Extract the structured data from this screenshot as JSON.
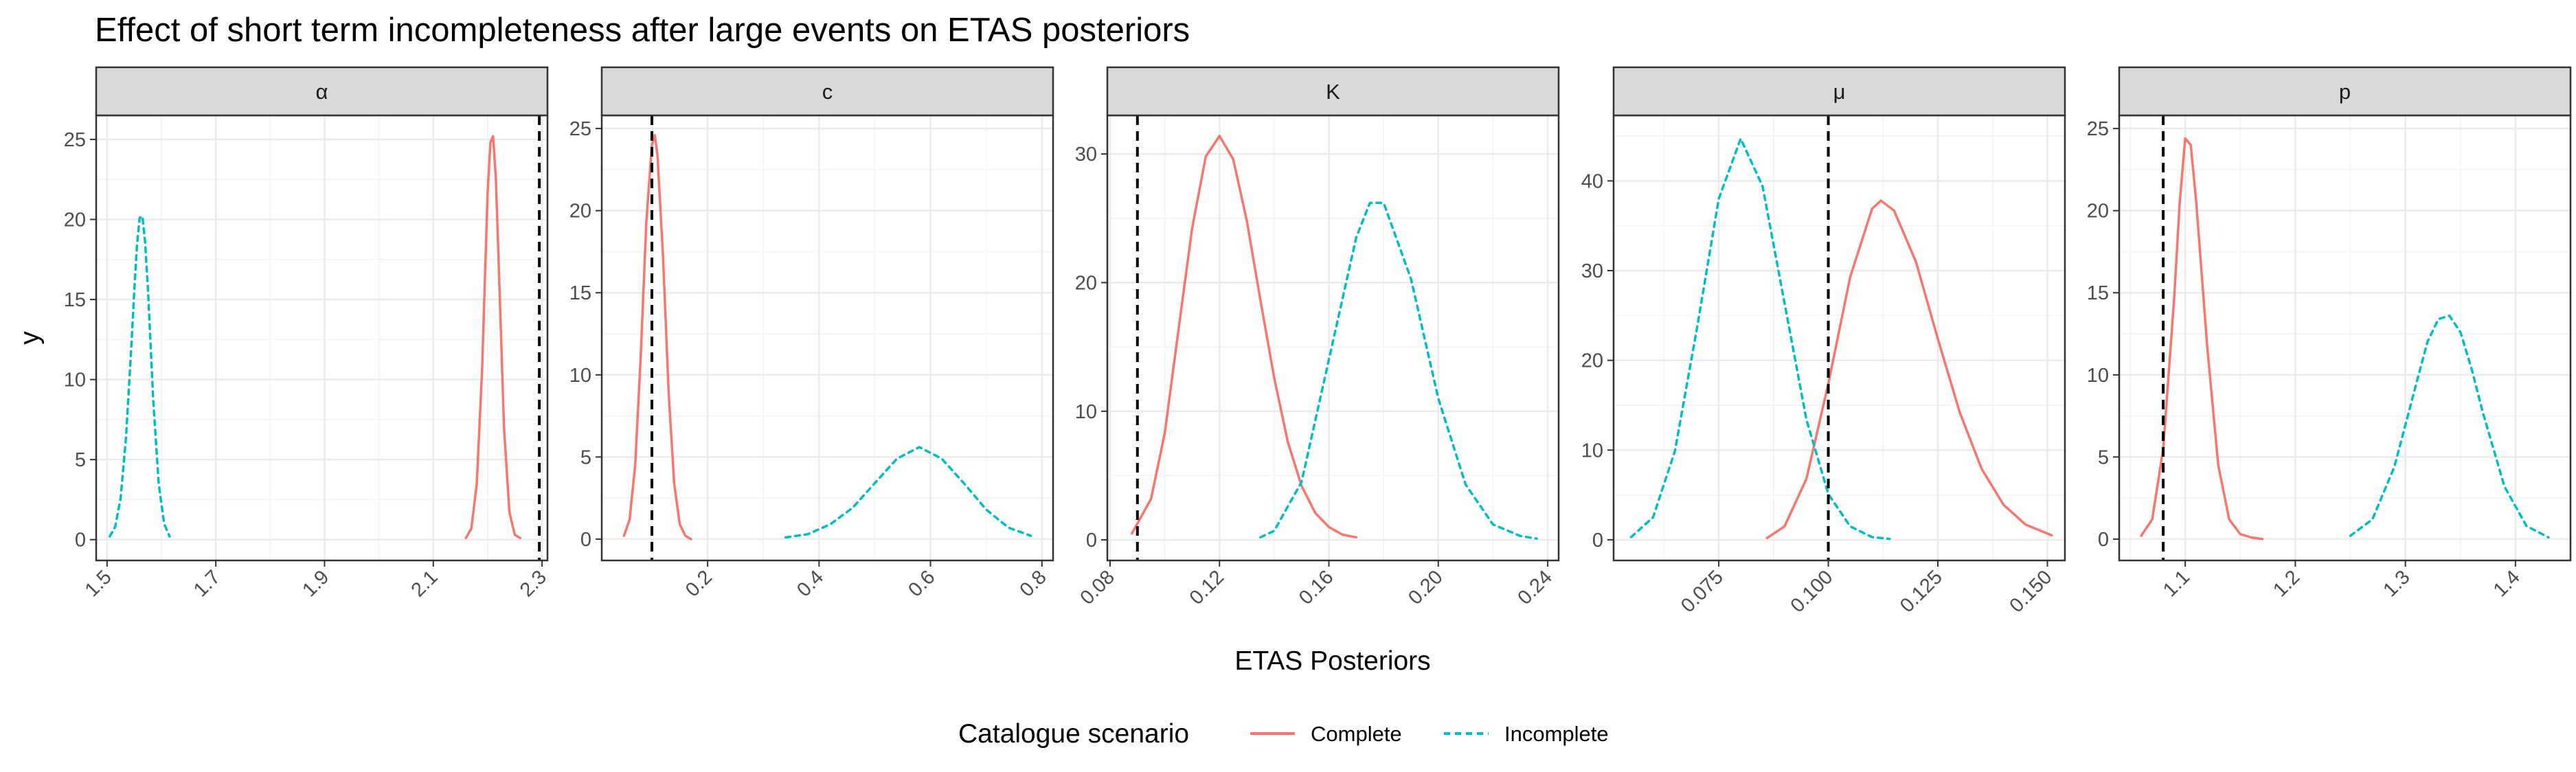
{
  "colors": {
    "complete": "#F8766D",
    "incomplete": "#00BFC4",
    "reference": "#000000",
    "strip_fill": "#D9D9D9",
    "grid_major": "#EBEBEB",
    "grid_minor": "#F5F5F5",
    "panel_border": "#333333"
  },
  "chart_data": {
    "type": "line",
    "title": "Effect of short term incompleteness after large events on ETAS posteriors",
    "xlabel": "ETAS Posteriors",
    "ylabel": "y",
    "legend": {
      "title": "Catalogue scenario",
      "position": "bottom",
      "entries": [
        {
          "label": "Complete",
          "color": "#F8766D",
          "linetype": "solid"
        },
        {
          "label": "Incomplete",
          "color": "#00BFC4",
          "linetype": "dotted"
        }
      ]
    },
    "grid": true,
    "panels": [
      {
        "strip": "α",
        "xlim": [
          1.48,
          2.31
        ],
        "ylim": [
          -1.3,
          26.5
        ],
        "xticks": [
          1.5,
          1.7,
          1.9,
          2.1,
          2.3
        ],
        "xtick_labels": [
          "1.5",
          "1.7",
          "1.9",
          "2.1",
          "2.3"
        ],
        "yticks": [
          0,
          5,
          10,
          15,
          20,
          25
        ],
        "ytick_labels": [
          "0",
          "5",
          "10",
          "15",
          "20",
          "25"
        ],
        "reference_x": 2.295,
        "series": [
          {
            "name": "Complete",
            "x": [
              2.16,
              2.17,
              2.18,
              2.19,
              2.195,
              2.2,
              2.205,
              2.21,
              2.215,
              2.22,
              2.23,
              2.24,
              2.25,
              2.26
            ],
            "y": [
              0.1,
              0.7,
              3.5,
              10.8,
              16.4,
              21.7,
              24.8,
              25.2,
              22.6,
              17.5,
              7.0,
              1.7,
              0.3,
              0.1
            ]
          },
          {
            "name": "Incomplete",
            "x": [
              1.505,
              1.515,
              1.525,
              1.535,
              1.545,
              1.55,
              1.555,
              1.56,
              1.565,
              1.57,
              1.575,
              1.585,
              1.595,
              1.605,
              1.615
            ],
            "y": [
              0.2,
              0.8,
              2.6,
              6.4,
              12.3,
              15.5,
              18.4,
              20.1,
              20.2,
              18.6,
              15.8,
              8.7,
              3.5,
              1.0,
              0.2
            ]
          }
        ]
      },
      {
        "strip": "c",
        "xlim": [
          0.01,
          0.82
        ],
        "ylim": [
          -1.3,
          25.8
        ],
        "xticks": [
          0.2,
          0.4,
          0.6,
          0.8
        ],
        "xtick_labels": [
          "0.2",
          "0.4",
          "0.6",
          "0.8"
        ],
        "yticks": [
          0,
          5,
          10,
          15,
          20,
          25
        ],
        "ytick_labels": [
          "0",
          "5",
          "10",
          "15",
          "20",
          "25"
        ],
        "reference_x": 0.1,
        "series": [
          {
            "name": "Complete",
            "x": [
              0.05,
              0.06,
              0.07,
              0.08,
              0.09,
              0.1,
              0.105,
              0.11,
              0.12,
              0.13,
              0.14,
              0.15,
              0.16,
              0.17
            ],
            "y": [
              0.2,
              1.2,
              4.5,
              11.2,
              19.3,
              24.0,
              24.6,
              23.4,
              17.2,
              9.0,
              3.4,
              0.9,
              0.2,
              0.0
            ]
          },
          {
            "name": "Incomplete",
            "x": [
              0.34,
              0.38,
              0.42,
              0.46,
              0.5,
              0.54,
              0.58,
              0.62,
              0.66,
              0.7,
              0.74,
              0.78
            ],
            "y": [
              0.1,
              0.3,
              0.9,
              1.9,
              3.4,
              4.9,
              5.6,
              4.9,
              3.4,
              1.8,
              0.7,
              0.2
            ]
          }
        ]
      },
      {
        "strip": "K",
        "xlim": [
          0.079,
          0.244
        ],
        "ylim": [
          -1.6,
          33.0
        ],
        "xticks": [
          0.08,
          0.12,
          0.16,
          0.2,
          0.24
        ],
        "xtick_labels": [
          "0.08",
          "0.12",
          "0.16",
          "0.20",
          "0.24"
        ],
        "yticks": [
          0,
          10,
          20,
          30
        ],
        "ytick_labels": [
          "0",
          "10",
          "20",
          "30"
        ],
        "reference_x": 0.09,
        "series": [
          {
            "name": "Complete",
            "x": [
              0.088,
              0.095,
              0.1,
              0.105,
              0.11,
              0.115,
              0.12,
              0.125,
              0.13,
              0.135,
              0.14,
              0.145,
              0.15,
              0.155,
              0.16,
              0.165,
              0.17
            ],
            "y": [
              0.5,
              3.2,
              8.3,
              16.3,
              24.2,
              29.8,
              31.4,
              29.6,
              24.8,
              18.6,
              12.6,
              7.6,
              4.2,
              2.1,
              1.0,
              0.4,
              0.2
            ]
          },
          {
            "name": "Incomplete",
            "x": [
              0.135,
              0.14,
              0.15,
              0.16,
              0.17,
              0.175,
              0.18,
              0.19,
              0.2,
              0.21,
              0.22,
              0.23,
              0.236
            ],
            "y": [
              0.2,
              0.7,
              4.5,
              14.0,
              23.5,
              26.2,
              26.2,
              20.3,
              11.0,
              4.3,
              1.2,
              0.3,
              0.1
            ]
          }
        ]
      },
      {
        "strip": "μ",
        "xlim": [
          0.051,
          0.154
        ],
        "ylim": [
          -2.3,
          47.3
        ],
        "xticks": [
          0.075,
          0.1,
          0.125,
          0.15
        ],
        "xtick_labels": [
          "0.075",
          "0.100",
          "0.125",
          "0.150"
        ],
        "yticks": [
          0,
          10,
          20,
          30,
          40
        ],
        "ytick_labels": [
          "0",
          "10",
          "20",
          "30",
          "40"
        ],
        "reference_x": 0.1,
        "series": [
          {
            "name": "Complete",
            "x": [
              0.086,
              0.09,
              0.095,
              0.1,
              0.105,
              0.11,
              0.112,
              0.115,
              0.12,
              0.125,
              0.13,
              0.135,
              0.14,
              0.145,
              0.151
            ],
            "y": [
              0.2,
              1.5,
              6.8,
              17.4,
              29.3,
              36.9,
              37.8,
              36.7,
              31.0,
              22.4,
              14.2,
              7.9,
              3.9,
              1.7,
              0.5
            ]
          },
          {
            "name": "Incomplete",
            "x": [
              0.055,
              0.06,
              0.065,
              0.07,
              0.075,
              0.08,
              0.085,
              0.09,
              0.095,
              0.1,
              0.105,
              0.11,
              0.114
            ],
            "y": [
              0.3,
              2.5,
              9.9,
              23.5,
              38.0,
              44.7,
              39.4,
              26.4,
              13.4,
              5.1,
              1.5,
              0.3,
              0.1
            ]
          }
        ]
      },
      {
        "strip": "p",
        "xlim": [
          1.04,
          1.45
        ],
        "ylim": [
          -1.3,
          25.8
        ],
        "xticks": [
          1.1,
          1.2,
          1.3,
          1.4
        ],
        "xtick_labels": [
          "1.1",
          "1.2",
          "1.3",
          "1.4"
        ],
        "yticks": [
          0,
          5,
          10,
          15,
          20,
          25
        ],
        "ytick_labels": [
          "0",
          "5",
          "10",
          "15",
          "20",
          "25"
        ],
        "reference_x": 1.08,
        "series": [
          {
            "name": "Complete",
            "x": [
              1.06,
              1.07,
              1.08,
              1.09,
              1.095,
              1.1,
              1.105,
              1.11,
              1.12,
              1.13,
              1.14,
              1.15,
              1.16,
              1.17
            ],
            "y": [
              0.2,
              1.2,
              5.5,
              14.7,
              20.5,
              24.4,
              24.0,
              20.5,
              11.7,
              4.5,
              1.2,
              0.3,
              0.1,
              0.0
            ]
          },
          {
            "name": "Incomplete",
            "x": [
              1.25,
              1.27,
              1.29,
              1.31,
              1.32,
              1.33,
              1.34,
              1.35,
              1.36,
              1.37,
              1.39,
              1.41,
              1.43
            ],
            "y": [
              0.2,
              1.2,
              4.4,
              9.5,
              12.0,
              13.4,
              13.6,
              12.6,
              10.4,
              7.8,
              3.2,
              0.8,
              0.1
            ]
          }
        ]
      }
    ]
  }
}
